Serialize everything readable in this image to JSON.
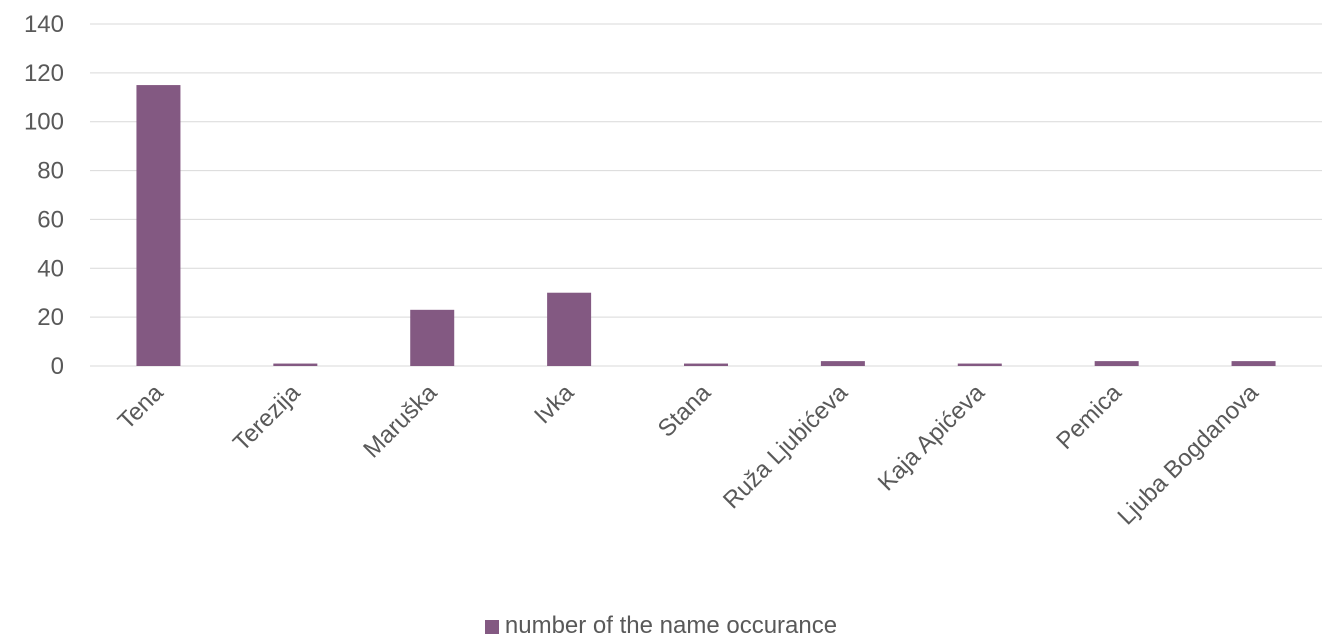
{
  "chart_data": {
    "type": "bar",
    "title": "",
    "xlabel": "",
    "ylabel": "",
    "categories": [
      "Tena",
      "Terezija",
      "Maruška",
      "Ivka",
      "Stana",
      "Ruža Ljubićeva",
      "Kaja Apićeva",
      "Pemica",
      "Ljuba Bogdanova"
    ],
    "series": [
      {
        "name": "number of the name occurance",
        "values": [
          115,
          1,
          23,
          30,
          1,
          2,
          1,
          2,
          2
        ]
      }
    ],
    "ylim": [
      0,
      140
    ],
    "yticks": [
      "0",
      "20",
      "40",
      "60",
      "80",
      "100",
      "120",
      "140"
    ],
    "grid": true,
    "legend_position": "bottom",
    "colors": {
      "bar": "#835982",
      "grid": "#d9d9d9",
      "text": "#595959"
    }
  }
}
